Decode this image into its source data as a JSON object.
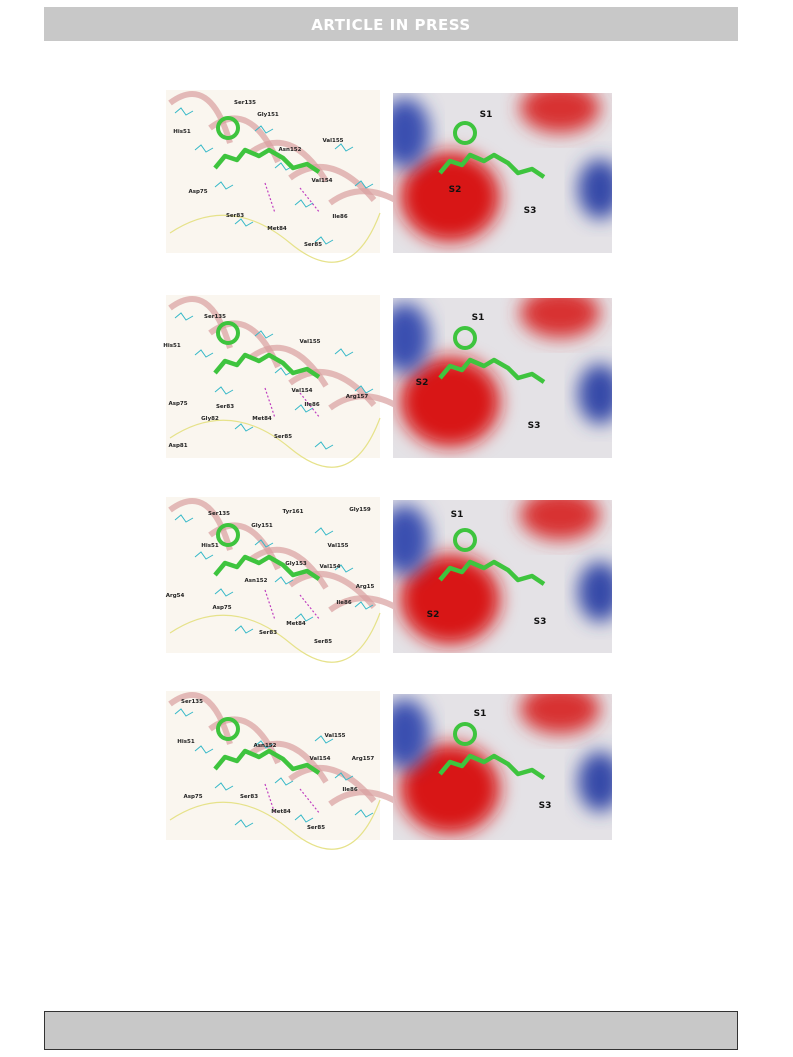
{
  "header": {
    "title": "ARTICLE IN PRESS"
  },
  "panels": [
    {
      "residues": [
        "Ser135",
        "Gly151",
        "His51",
        "Asn152",
        "Val155",
        "Asp75",
        "Val154",
        "Ser83",
        "Ile86",
        "Met84",
        "Ser85"
      ],
      "pockets": [
        "S1",
        "S2",
        "S3"
      ]
    },
    {
      "residues": [
        "Ser135",
        "Val155",
        "His51",
        "Val154",
        "Arg157",
        "Asp75",
        "Ser83",
        "Ile86",
        "Gly82",
        "Met84",
        "Ser85",
        "Asp81"
      ],
      "pockets": [
        "S1",
        "S2",
        "S3"
      ]
    },
    {
      "residues": [
        "Ser135",
        "Tyr161",
        "Gly159",
        "Gly151",
        "His51",
        "Val155",
        "Gly153",
        "Asn152",
        "Val154",
        "Arg54",
        "Arg15",
        "Asp75",
        "Ile86",
        "Met84",
        "Ser83",
        "Ser85"
      ],
      "pockets": [
        "S1",
        "S2",
        "S3"
      ]
    },
    {
      "residues": [
        "Ser135",
        "His51",
        "Asn152",
        "Val155",
        "Arg157",
        "Val154",
        "Asp75",
        "Ser83",
        "Ile86",
        "Met84",
        "Ser85"
      ],
      "pockets": [
        "S1",
        "S3"
      ]
    }
  ]
}
